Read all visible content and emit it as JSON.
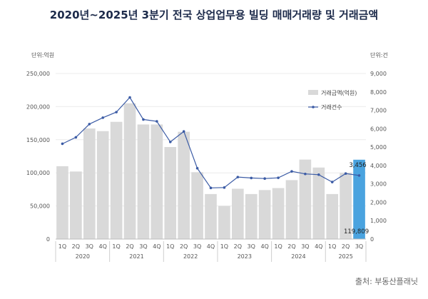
{
  "title": "2020년~2025년 3분기 전국 상업업무용 빌딩 매매거래량 및 거래금액",
  "source": "출처: 부동산플래닛",
  "chart_data": {
    "type": "bar",
    "title": "2020년~2025년 3분기 전국 상업업무용 빌딩 매매거래량 및 거래금액",
    "categories": [
      "1Q",
      "2Q",
      "3Q",
      "4Q",
      "1Q",
      "2Q",
      "3Q",
      "4Q",
      "1Q",
      "2Q",
      "3Q",
      "4Q",
      "1Q",
      "2Q",
      "3Q",
      "4Q",
      "1Q",
      "2Q",
      "3Q",
      "4Q",
      "1Q",
      "2Q",
      "3Q"
    ],
    "years": [
      {
        "label": "2020",
        "span": 4
      },
      {
        "label": "2021",
        "span": 4
      },
      {
        "label": "2022",
        "span": 4
      },
      {
        "label": "2023",
        "span": 4
      },
      {
        "label": "2024",
        "span": 4
      },
      {
        "label": "2025",
        "span": 3
      }
    ],
    "series": [
      {
        "name": "거래금액(억원)",
        "kind": "bar",
        "axis": "left",
        "color": "#d9d9d9",
        "highlight_color": "#4aa3df",
        "values": [
          110000,
          102000,
          167000,
          163000,
          177000,
          205000,
          173000,
          173000,
          139000,
          162000,
          101000,
          68000,
          50000,
          76000,
          68000,
          74000,
          77000,
          89000,
          120000,
          108000,
          68000,
          100000,
          119809
        ]
      },
      {
        "name": "거래건수",
        "kind": "line",
        "axis": "right",
        "color": "#3b5ba5",
        "values": [
          5180,
          5530,
          6250,
          6600,
          6900,
          7700,
          6500,
          6400,
          5280,
          5850,
          3850,
          2780,
          2800,
          3370,
          3320,
          3290,
          3330,
          3680,
          3540,
          3500,
          3100,
          3560,
          3456
        ]
      }
    ],
    "left_axis": {
      "unit": "단위:억원",
      "min": 0,
      "max": 250000,
      "ticks": [
        "0",
        "50,000",
        "100,000",
        "150,000",
        "200,000",
        "250,000"
      ],
      "tick_values": [
        0,
        50000,
        100000,
        150000,
        200000,
        250000
      ]
    },
    "right_axis": {
      "unit": "단위:건",
      "min": 0,
      "max": 9000,
      "ticks": [
        "0",
        "1,000",
        "2,000",
        "3,000",
        "4,000",
        "5,000",
        "6,000",
        "7,000",
        "8,000",
        "9,000"
      ],
      "tick_values": [
        0,
        1000,
        2000,
        3000,
        4000,
        5000,
        6000,
        7000,
        8000,
        9000
      ]
    },
    "annotations": [
      {
        "label": "3,456",
        "series": "line",
        "index": 22
      },
      {
        "label": "119,809",
        "series": "bar",
        "index": 22
      }
    ],
    "legend": {
      "placement": "top-right"
    }
  }
}
